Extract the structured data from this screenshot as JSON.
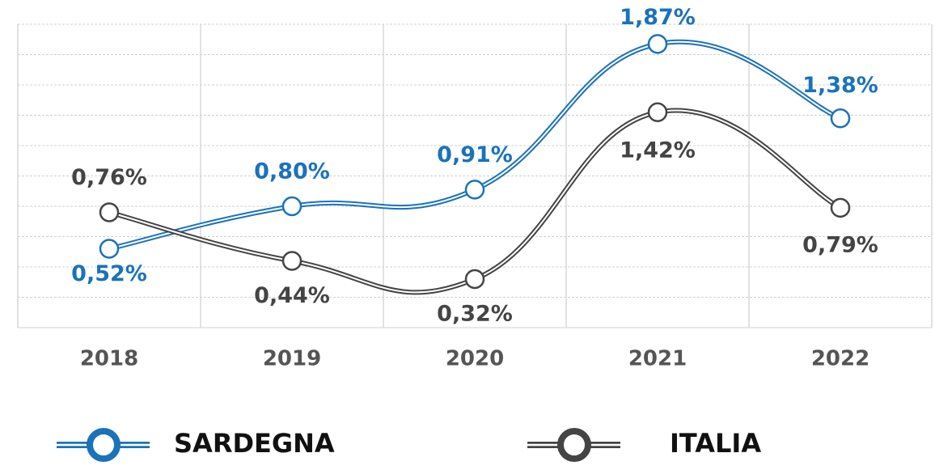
{
  "chart_data": {
    "type": "line",
    "categories": [
      "2018",
      "2019",
      "2020",
      "2021",
      "2022"
    ],
    "series": [
      {
        "name": "SARDEGNA",
        "color": "#1a72bb",
        "values": [
          0.52,
          0.8,
          0.91,
          1.87,
          1.38
        ],
        "value_labels": [
          "0,52%",
          "0,80%",
          "0,91%",
          "1,87%",
          "1,38%"
        ]
      },
      {
        "name": "ITALIA",
        "color": "#444444",
        "values": [
          0.76,
          0.44,
          0.32,
          1.42,
          0.79
        ],
        "value_labels": [
          "0,76%",
          "0,44%",
          "0,32%",
          "1,42%",
          "0,79%"
        ]
      }
    ],
    "ylim": [
      0,
      2
    ],
    "yticks": [
      0,
      0.2,
      0.4,
      0.6,
      0.8,
      1,
      1.2,
      1.4,
      1.6,
      1.8,
      2
    ],
    "grid": true
  }
}
